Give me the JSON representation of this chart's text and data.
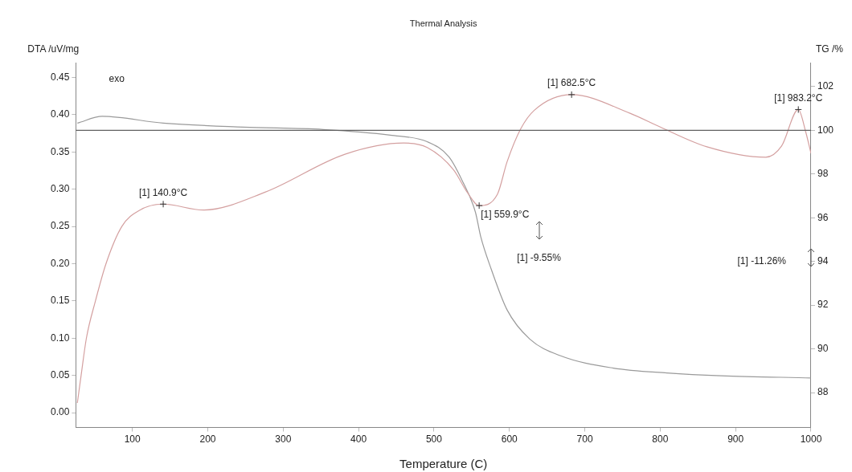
{
  "chart_data": {
    "type": "line",
    "title": "Thermal Analysis",
    "xlabel": "Temperature (C)",
    "ylabel": "DTA /uV/mg",
    "y2label": "TG /%",
    "series": [
      {
        "color": "#d4a0a0",
        "x": [
          27,
          32,
          39,
          51,
          65,
          86,
          110,
          140.9,
          194,
          276,
          382,
          460,
          491,
          526,
          544,
          559.9,
          584,
          597,
          615,
          633,
          682.5,
          760,
          799,
          862,
          940,
          961,
          983.2,
          993,
          1000
        ],
        "values": [
          0.013,
          0.05,
          0.1,
          0.15,
          0.2,
          0.25,
          0.272,
          0.28,
          0.272,
          0.296,
          0.347,
          0.362,
          0.356,
          0.326,
          0.296,
          0.278,
          0.293,
          0.337,
          0.381,
          0.406,
          0.427,
          0.402,
          0.384,
          0.357,
          0.343,
          0.358,
          0.407,
          0.377,
          0.348
        ]
      },
      {
        "color": "#9a9a9a",
        "axis": "y2",
        "x": [
          27,
          60,
          141,
          247,
          353,
          442,
          491,
          520,
          537,
          555,
          562,
          576,
          597,
          627,
          668,
          738,
          809,
          881,
          1000
        ],
        "values": [
          100.33,
          100.64,
          100.33,
          100.15,
          100.04,
          99.78,
          99.48,
          98.78,
          97.73,
          96.25,
          95.13,
          93.64,
          91.78,
          90.45,
          89.68,
          89.12,
          88.9,
          88.77,
          88.67
        ]
      }
    ],
    "xlim": [
      25,
      1000
    ],
    "xticks": [
      100,
      200,
      300,
      400,
      500,
      600,
      700,
      800,
      900,
      1000
    ],
    "ylim": [
      -0.02,
      0.47
    ],
    "yticks": [
      {
        "value": 0,
        "label": "0.00"
      },
      0.05,
      {
        "value": 0.1,
        "label": "0.10"
      },
      0.15,
      {
        "value": 0.2,
        "label": "0.20"
      },
      0.25,
      {
        "value": 0.3,
        "label": "0.30"
      },
      0.35,
      {
        "value": 0.4,
        "label": "0.40"
      },
      0.45
    ],
    "y2lim": [
      86.4,
      103.1
    ],
    "y2ticks": [
      88,
      90,
      92,
      94,
      96,
      98,
      100,
      102
    ],
    "ref_lines": [
      {
        "axis": "y2",
        "value": 100,
        "color": "#606060"
      }
    ],
    "annotations": [
      {
        "text": "[1] 140.9°C",
        "x": 140.9,
        "y": 0.28
      },
      {
        "text": "[1] 559.9°C",
        "x": 559.9,
        "y": 0.278
      },
      {
        "text": "[1] 682.5°C",
        "x": 682.5,
        "y": 0.427
      },
      {
        "text": "[1] 983.2°C",
        "x": 983.2,
        "y": 0.407
      },
      "exo",
      "[1] -9.55%",
      "[1] -11.26%"
    ],
    "grid": false,
    "legend": false,
    "marker": "none",
    "line_style": "solid"
  }
}
